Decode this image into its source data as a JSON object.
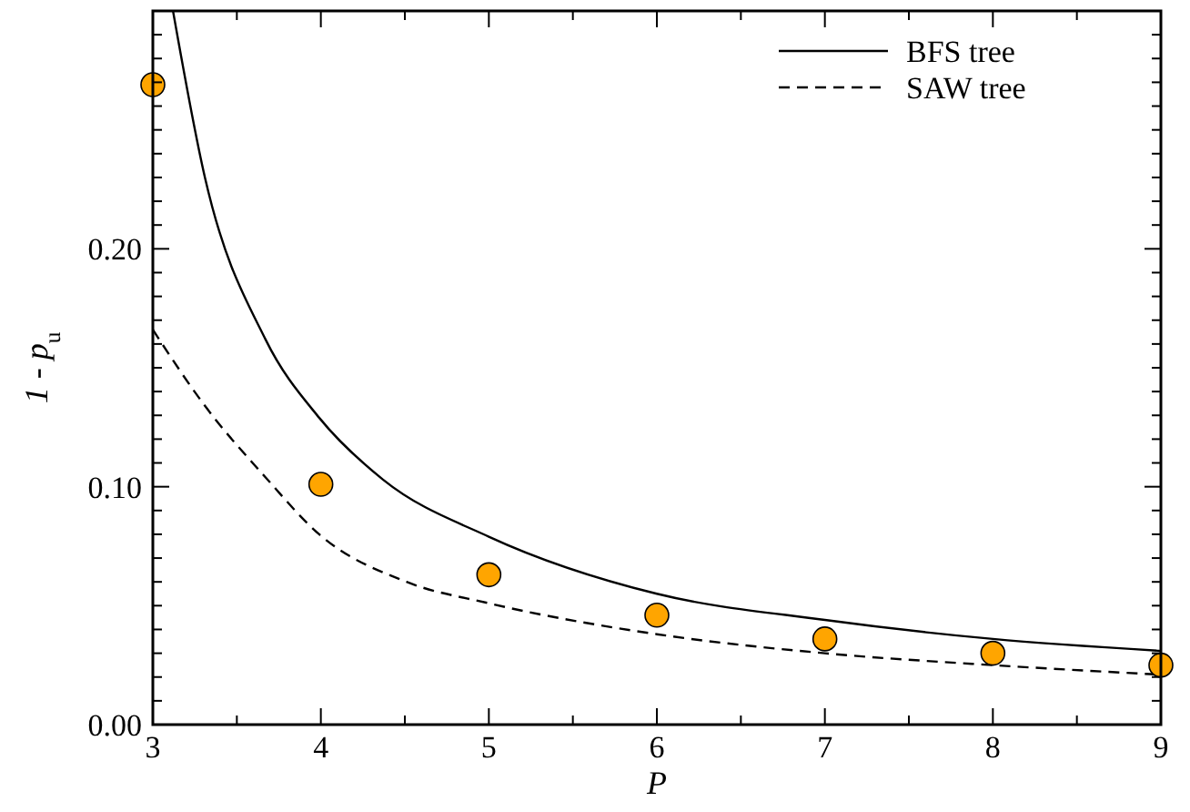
{
  "chart_data": {
    "type": "line",
    "xlabel": "P",
    "ylabel": "1 - p$_{u}$",
    "xlim": [
      3,
      9
    ],
    "ylim": [
      0,
      0.3
    ],
    "xticks": [
      3,
      {
        "value": 3.5,
        "label": null
      },
      4,
      {
        "value": 4.5,
        "label": null
      },
      5,
      {
        "value": 5.5,
        "label": null
      },
      6,
      {
        "value": 6.5,
        "label": null
      },
      7,
      {
        "value": 7.5,
        "label": null
      },
      8,
      {
        "value": 8.5,
        "label": null
      },
      9
    ],
    "yticks": [
      {
        "value": 0,
        "label": "0.00"
      },
      {
        "value": 0.01,
        "label": null
      },
      {
        "value": 0.02,
        "label": null
      },
      {
        "value": 0.03,
        "label": null
      },
      {
        "value": 0.04,
        "label": null
      },
      {
        "value": 0.05,
        "label": null
      },
      {
        "value": 0.06,
        "label": null
      },
      {
        "value": 0.07,
        "label": null
      },
      {
        "value": 0.08,
        "label": null
      },
      {
        "value": 0.09,
        "label": null
      },
      {
        "value": 0.1,
        "label": "0.10"
      },
      {
        "value": 0.11,
        "label": null
      },
      {
        "value": 0.12,
        "label": null
      },
      {
        "value": 0.13,
        "label": null
      },
      {
        "value": 0.14,
        "label": null
      },
      {
        "value": 0.15,
        "label": null
      },
      {
        "value": 0.16,
        "label": null
      },
      {
        "value": 0.17,
        "label": null
      },
      {
        "value": 0.18,
        "label": null
      },
      {
        "value": 0.19,
        "label": null
      },
      {
        "value": 0.2,
        "label": "0.20"
      },
      {
        "value": 0.21,
        "label": null
      },
      {
        "value": 0.22,
        "label": null
      },
      {
        "value": 0.23,
        "label": null
      },
      {
        "value": 0.24,
        "label": null
      },
      {
        "value": 0.25,
        "label": null
      },
      {
        "value": 0.26,
        "label": null
      },
      {
        "value": 0.27,
        "label": null
      },
      {
        "value": 0.28,
        "label": null
      },
      {
        "value": 0.29,
        "label": null
      },
      {
        "value": 0.3,
        "label": null
      }
    ],
    "grid": false,
    "legend": "top right",
    "series": [
      {
        "name": "BFS tree",
        "type": "line",
        "color": "#000000",
        "line_style": "solid",
        "marker": "none",
        "x": [
          3.12,
          3.31,
          3.67,
          3.99,
          4.37,
          5.0,
          6.0,
          7.0,
          8.0,
          9.0
        ],
        "values": [
          0.3,
          0.23,
          0.162,
          0.129,
          0.103,
          0.079,
          0.055,
          0.044,
          0.036,
          0.031
        ]
      },
      {
        "name": "SAW tree",
        "type": "line",
        "color": "#000000",
        "line_style": "dashed",
        "marker": "none",
        "x": [
          3.0,
          3.31,
          3.67,
          3.99,
          4.51,
          5.0,
          6.0,
          7.0,
          8.0,
          9.0
        ],
        "values": [
          0.166,
          0.134,
          0.104,
          0.08,
          0.06,
          0.051,
          0.038,
          0.03,
          0.025,
          0.021
        ]
      },
      {
        "type": "scatter",
        "color": "#ffa500",
        "marker": "circle",
        "x": [
          3,
          4,
          5,
          6,
          7,
          8,
          9
        ],
        "values": [
          0.269,
          0.101,
          0.063,
          0.046,
          0.036,
          0.03,
          0.025
        ]
      }
    ]
  }
}
